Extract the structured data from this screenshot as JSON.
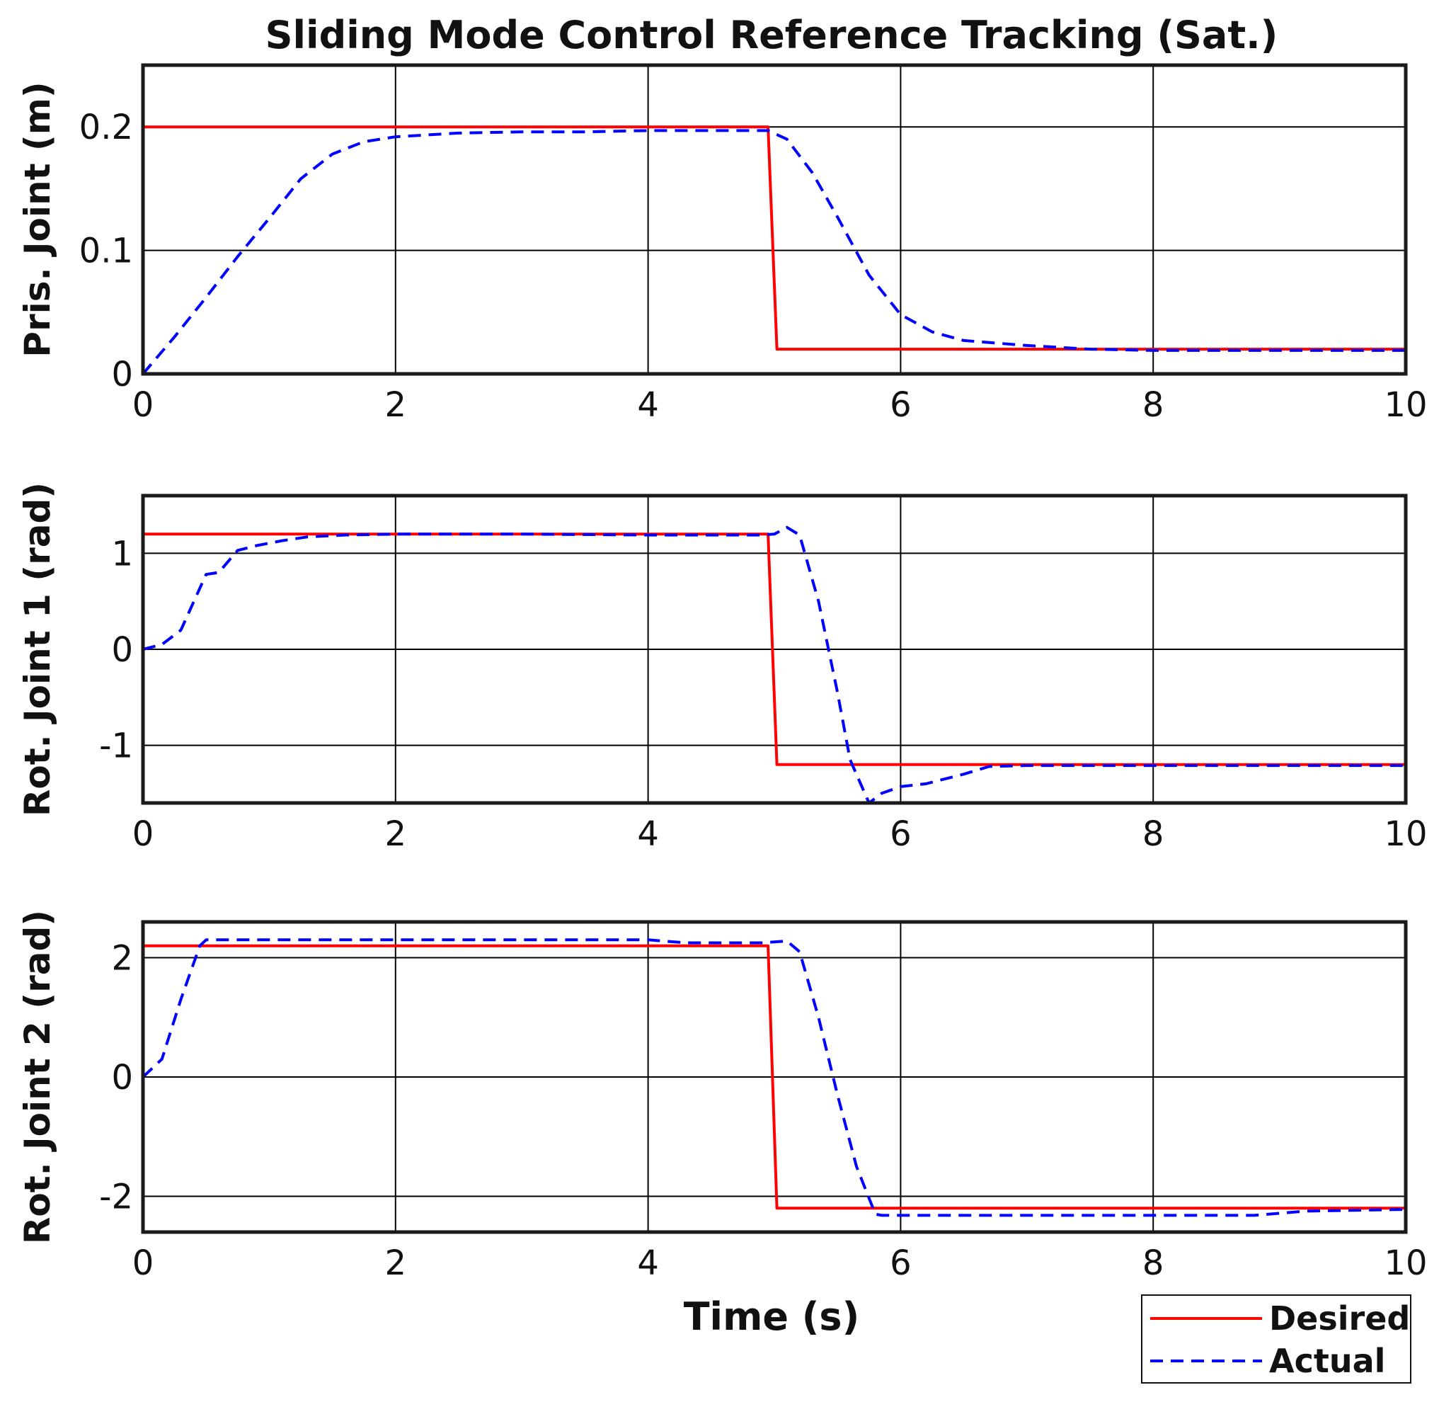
{
  "chart_data": {
    "type": "line",
    "title": "Sliding Mode Control Reference Tracking (Sat.)",
    "xlabel": "Time (s)",
    "xlim": [
      0,
      10
    ],
    "xticks": [
      0,
      2,
      4,
      6,
      8,
      10
    ],
    "xtick_labels": [
      "0",
      "2",
      "4",
      "6",
      "8",
      "10"
    ],
    "grid": true,
    "legend": {
      "position": "bottom-right",
      "entries": [
        {
          "name": "Desired",
          "color": "#ff0000",
          "style": "solid"
        },
        {
          "name": "Actual",
          "color": "#0000ff",
          "style": "dashed"
        }
      ]
    },
    "subplots": [
      {
        "ylabel": "Pris. Joint (m)",
        "ylim": [
          0,
          0.25
        ],
        "yticks": [
          0,
          0.1,
          0.2
        ],
        "ytick_labels": [
          "0",
          "0.1",
          "0.2"
        ],
        "series": [
          {
            "name": "Desired",
            "x": [
              0,
              4.95,
              5.02,
              10
            ],
            "y": [
              0.2,
              0.2,
              0.02,
              0.02
            ]
          },
          {
            "name": "Actual",
            "x": [
              0,
              0.25,
              0.5,
              0.75,
              1.0,
              1.25,
              1.5,
              1.75,
              2.0,
              2.5,
              3.0,
              3.5,
              4.0,
              4.5,
              4.95,
              5.1,
              5.3,
              5.5,
              5.75,
              6.0,
              6.25,
              6.5,
              7.0,
              7.5,
              8.0,
              8.5,
              9.0,
              9.5,
              10.0
            ],
            "y": [
              0.0,
              0.03,
              0.062,
              0.095,
              0.126,
              0.158,
              0.178,
              0.188,
              0.192,
              0.195,
              0.196,
              0.196,
              0.197,
              0.197,
              0.197,
              0.19,
              0.163,
              0.127,
              0.08,
              0.048,
              0.034,
              0.027,
              0.023,
              0.02,
              0.019,
              0.019,
              0.019,
              0.019,
              0.019
            ]
          }
        ]
      },
      {
        "ylabel": "Rot. Joint 1 (rad)",
        "ylim": [
          -1.6,
          1.6
        ],
        "yticks": [
          -1,
          0,
          1
        ],
        "ytick_labels": [
          "-1",
          "0",
          "1"
        ],
        "series": [
          {
            "name": "Desired",
            "x": [
              0,
              4.95,
              5.02,
              10
            ],
            "y": [
              1.2,
              1.2,
              -1.2,
              -1.2
            ]
          },
          {
            "name": "Actual",
            "x": [
              0,
              0.15,
              0.3,
              0.5,
              0.6,
              0.75,
              0.9,
              1.1,
              1.3,
              1.6,
              2.0,
              3.0,
              4.0,
              4.9,
              5.0,
              5.1,
              5.2,
              5.35,
              5.5,
              5.6,
              5.75,
              5.85,
              6.0,
              6.2,
              6.5,
              6.7,
              7.0,
              8.0,
              9.0,
              10.0
            ],
            "y": [
              0.0,
              0.05,
              0.2,
              0.78,
              0.8,
              1.03,
              1.08,
              1.13,
              1.17,
              1.19,
              1.2,
              1.2,
              1.19,
              1.19,
              1.2,
              1.27,
              1.19,
              0.5,
              -0.45,
              -1.15,
              -1.6,
              -1.5,
              -1.43,
              -1.4,
              -1.3,
              -1.22,
              -1.21,
              -1.21,
              -1.21,
              -1.21
            ]
          }
        ]
      },
      {
        "ylabel": "Rot. Joint 2 (rad)",
        "ylim": [
          -2.6,
          2.6
        ],
        "yticks": [
          -2,
          0,
          2
        ],
        "ytick_labels": [
          "-2",
          "0",
          "2"
        ],
        "series": [
          {
            "name": "Desired",
            "x": [
              0,
              4.95,
              5.02,
              10
            ],
            "y": [
              2.2,
              2.2,
              -2.2,
              -2.2
            ]
          },
          {
            "name": "Actual",
            "x": [
              0,
              0.15,
              0.3,
              0.45,
              0.5,
              1.0,
              2.0,
              3.0,
              4.0,
              4.3,
              4.9,
              5.1,
              5.2,
              5.35,
              5.5,
              5.65,
              5.8,
              5.85,
              6.0,
              7.0,
              8.0,
              8.8,
              9.2,
              10.0
            ],
            "y": [
              0.0,
              0.3,
              1.3,
              2.2,
              2.3,
              2.3,
              2.3,
              2.3,
              2.3,
              2.25,
              2.25,
              2.28,
              2.1,
              1.0,
              -0.3,
              -1.5,
              -2.3,
              -2.32,
              -2.32,
              -2.32,
              -2.32,
              -2.32,
              -2.25,
              -2.22
            ]
          }
        ]
      }
    ]
  }
}
